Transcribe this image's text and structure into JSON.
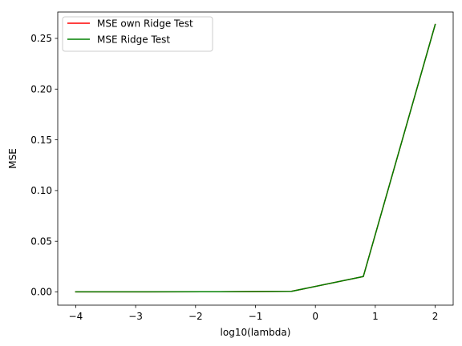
{
  "chart_data": {
    "type": "line",
    "title": "",
    "xlabel": "log10(lambda)",
    "ylabel": "MSE",
    "xlim": [
      -4.3,
      2.3
    ],
    "ylim": [
      -0.013,
      0.276
    ],
    "x_ticks": [
      -4,
      -3,
      -2,
      -1,
      0,
      1,
      2
    ],
    "x_tick_labels": [
      "−4",
      "−3",
      "−2",
      "−1",
      "0",
      "1",
      "2"
    ],
    "y_ticks": [
      0.0,
      0.05,
      0.1,
      0.15,
      0.2,
      0.25
    ],
    "y_tick_labels": [
      "0.00",
      "0.05",
      "0.10",
      "0.15",
      "0.20",
      "0.25"
    ],
    "grid": false,
    "legend_position": "upper-left",
    "series": [
      {
        "name": "MSE own Ridge Test",
        "color": "#ff0000",
        "x": [
          -4.0,
          -2.8,
          -1.6,
          -0.4,
          0.8,
          2.0
        ],
        "y": [
          0.0001,
          0.0001,
          0.0002,
          0.0006,
          0.0152,
          0.2637
        ]
      },
      {
        "name": "MSE Ridge Test",
        "color": "#008000",
        "x": [
          -4.0,
          -2.8,
          -1.6,
          -0.4,
          0.8,
          2.0
        ],
        "y": [
          0.0001,
          0.0001,
          0.0002,
          0.0006,
          0.0152,
          0.2637
        ]
      }
    ]
  }
}
